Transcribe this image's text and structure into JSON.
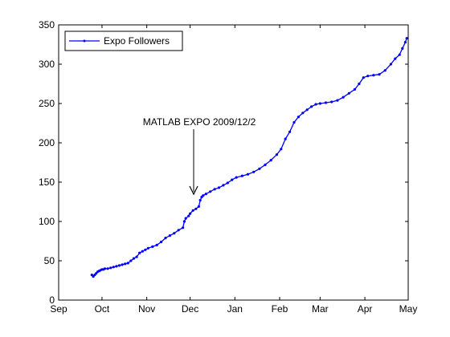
{
  "chart_data": {
    "type": "line",
    "title": "",
    "xlabel": "",
    "ylabel": "",
    "x_ticks": [
      "Sep",
      "Oct",
      "Nov",
      "Dec",
      "Jan",
      "Feb",
      "Mar",
      "Apr",
      "May"
    ],
    "y_ticks": [
      0,
      50,
      100,
      150,
      200,
      250,
      300,
      350
    ],
    "xlim": [
      "2009-09-01",
      "2010-05-01"
    ],
    "ylim": [
      0,
      350
    ],
    "legend_position": "top-left",
    "grid": false,
    "series": [
      {
        "name": "Expo Followers",
        "color": "#0000ff",
        "marker": "point",
        "points": [
          [
            "2009-09-24",
            32
          ],
          [
            "2009-09-25",
            30
          ],
          [
            "2009-09-26",
            32
          ],
          [
            "2009-09-27",
            34
          ],
          [
            "2009-09-28",
            36
          ],
          [
            "2009-09-29",
            37
          ],
          [
            "2009-09-30",
            38
          ],
          [
            "2009-10-01",
            39
          ],
          [
            "2009-10-02",
            39
          ],
          [
            "2009-10-03",
            40
          ],
          [
            "2009-10-05",
            40
          ],
          [
            "2009-10-07",
            41
          ],
          [
            "2009-10-09",
            42
          ],
          [
            "2009-10-11",
            43
          ],
          [
            "2009-10-13",
            44
          ],
          [
            "2009-10-15",
            45
          ],
          [
            "2009-10-17",
            46
          ],
          [
            "2009-10-19",
            47
          ],
          [
            "2009-10-21",
            50
          ],
          [
            "2009-10-23",
            53
          ],
          [
            "2009-10-25",
            55
          ],
          [
            "2009-10-27",
            60
          ],
          [
            "2009-10-29",
            62
          ],
          [
            "2009-10-31",
            64
          ],
          [
            "2009-11-02",
            66
          ],
          [
            "2009-11-05",
            68
          ],
          [
            "2009-11-08",
            70
          ],
          [
            "2009-11-11",
            74
          ],
          [
            "2009-11-14",
            79
          ],
          [
            "2009-11-17",
            82
          ],
          [
            "2009-11-20",
            85
          ],
          [
            "2009-11-23",
            89
          ],
          [
            "2009-11-26",
            92
          ],
          [
            "2009-11-27",
            100
          ],
          [
            "2009-11-28",
            104
          ],
          [
            "2009-11-30",
            107
          ],
          [
            "2009-12-01",
            110
          ],
          [
            "2009-12-03",
            114
          ],
          [
            "2009-12-05",
            116
          ],
          [
            "2009-12-07",
            119
          ],
          [
            "2009-12-08",
            127
          ],
          [
            "2009-12-09",
            131
          ],
          [
            "2009-12-10",
            133
          ],
          [
            "2009-12-12",
            135
          ],
          [
            "2009-12-15",
            138
          ],
          [
            "2009-12-18",
            141
          ],
          [
            "2009-12-21",
            143
          ],
          [
            "2009-12-24",
            146
          ],
          [
            "2009-12-27",
            149
          ],
          [
            "2009-12-30",
            153
          ],
          [
            "2010-01-02",
            156
          ],
          [
            "2010-01-06",
            158
          ],
          [
            "2010-01-10",
            160
          ],
          [
            "2010-01-14",
            163
          ],
          [
            "2010-01-18",
            167
          ],
          [
            "2010-01-22",
            172
          ],
          [
            "2010-01-26",
            178
          ],
          [
            "2010-01-30",
            185
          ],
          [
            "2010-02-02",
            192
          ],
          [
            "2010-02-05",
            205
          ],
          [
            "2010-02-08",
            214
          ],
          [
            "2010-02-11",
            226
          ],
          [
            "2010-02-14",
            233
          ],
          [
            "2010-02-17",
            238
          ],
          [
            "2010-02-20",
            242
          ],
          [
            "2010-02-23",
            246
          ],
          [
            "2010-02-26",
            249
          ],
          [
            "2010-03-01",
            250
          ],
          [
            "2010-03-05",
            251
          ],
          [
            "2010-03-09",
            252
          ],
          [
            "2010-03-13",
            254
          ],
          [
            "2010-03-17",
            258
          ],
          [
            "2010-03-21",
            263
          ],
          [
            "2010-03-25",
            268
          ],
          [
            "2010-03-28",
            275
          ],
          [
            "2010-03-31",
            283
          ],
          [
            "2010-04-03",
            285
          ],
          [
            "2010-04-07",
            286
          ],
          [
            "2010-04-11",
            287
          ],
          [
            "2010-04-15",
            292
          ],
          [
            "2010-04-19",
            300
          ],
          [
            "2010-04-22",
            307
          ],
          [
            "2010-04-25",
            312
          ],
          [
            "2010-04-27",
            320
          ],
          [
            "2010-04-29",
            328
          ],
          [
            "2010-04-30",
            333
          ]
        ]
      }
    ],
    "annotations": [
      {
        "text": "MATLAB EXPO 2009/12/2",
        "arrow_to": [
          "2009-12-02",
          129
        ]
      }
    ]
  }
}
